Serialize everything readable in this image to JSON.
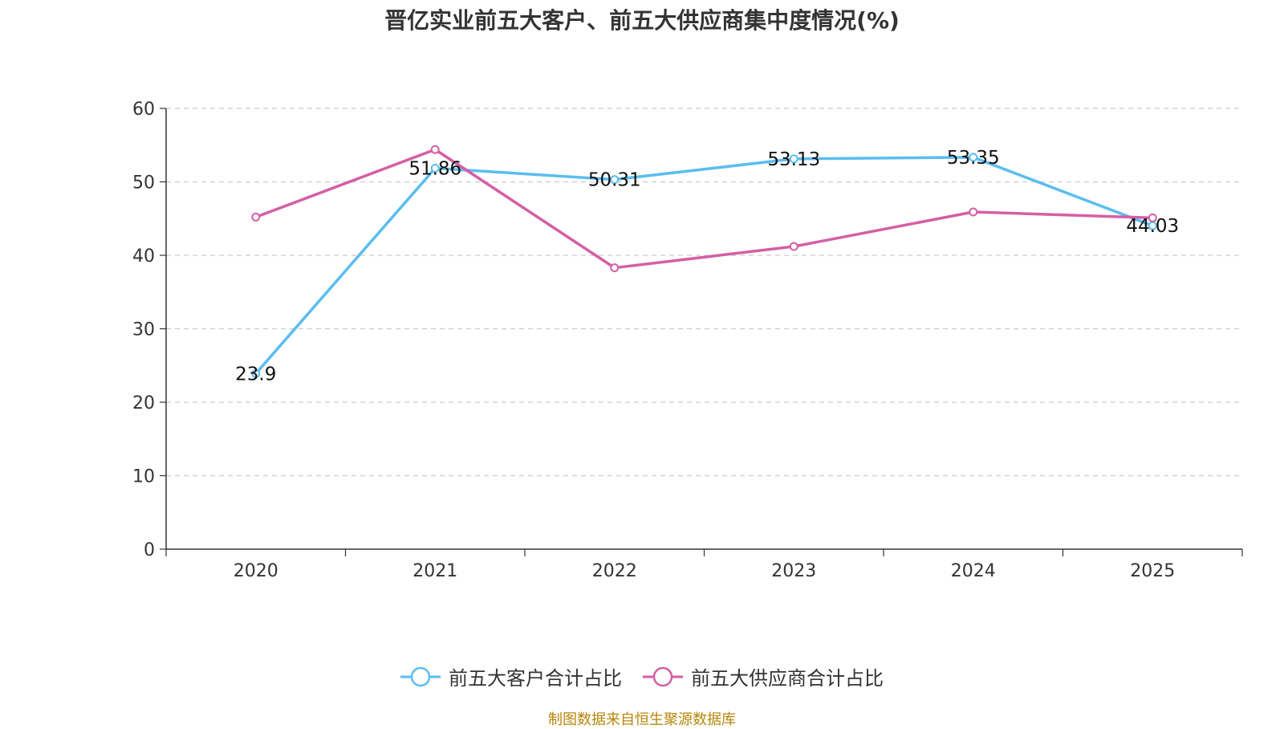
{
  "chart_data": {
    "type": "line",
    "title": "晋亿实业前五大客户、前五大供应商集中度情况(%)",
    "categories": [
      "2020",
      "2021",
      "2022",
      "2023",
      "2024",
      "2025"
    ],
    "ylim": [
      0,
      60
    ],
    "yticks": [
      0,
      10,
      20,
      30,
      40,
      50,
      60
    ],
    "grid": true,
    "legend_position": "bottom",
    "series": [
      {
        "name": "前五大客户合计占比",
        "color": "#5bbdf0",
        "values": [
          23.9,
          51.86,
          50.31,
          53.13,
          53.35,
          44.03
        ],
        "labels": [
          "23.9",
          "51.86",
          "50.31",
          "53.13",
          "53.35",
          "44.03"
        ],
        "show_labels": true
      },
      {
        "name": "前五大供应商合计占比",
        "color": "#d45fa5",
        "values": [
          45.2,
          54.4,
          38.3,
          41.2,
          45.9,
          45.1
        ],
        "show_labels": false
      }
    ]
  },
  "source": "制图数据来自恒生聚源数据库"
}
